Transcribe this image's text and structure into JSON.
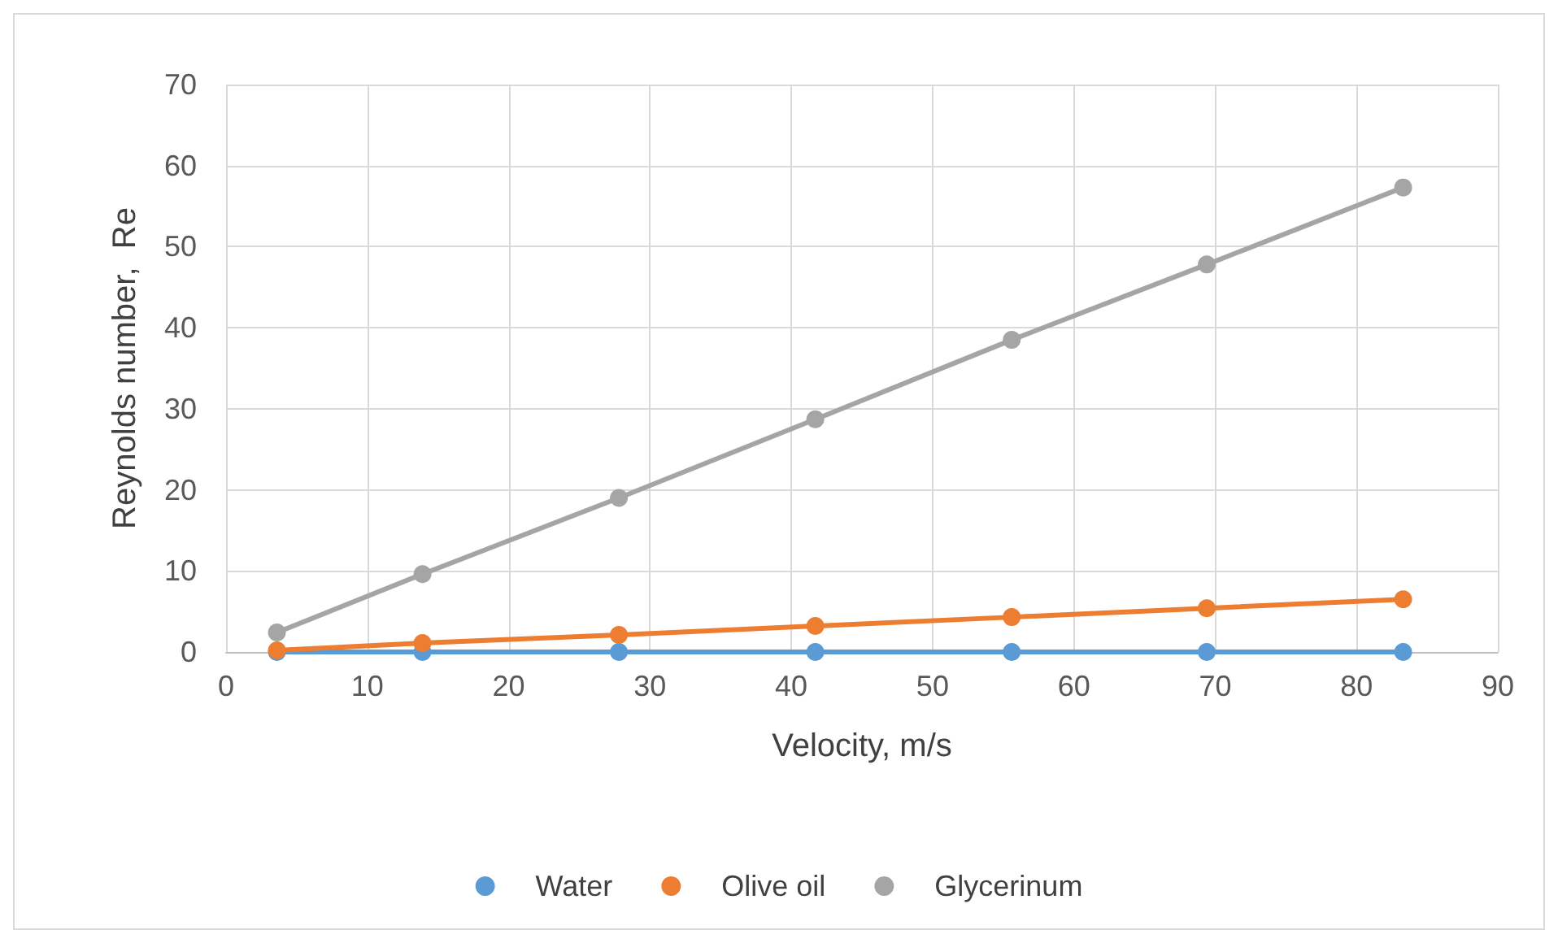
{
  "chart_data": {
    "type": "line",
    "xlabel": "Velocity, m/s",
    "ylabel": "Reynolds number,  Re",
    "x": [
      3.6,
      13.9,
      27.8,
      41.7,
      55.6,
      69.4,
      83.3
    ],
    "series": [
      {
        "name": "Water",
        "color": "#5b9bd5",
        "values": [
          0,
          0,
          0,
          0,
          0,
          0,
          0
        ]
      },
      {
        "name": "Olive oil",
        "color": "#ed7d31",
        "values": [
          0.2,
          1.1,
          2.1,
          3.2,
          4.3,
          5.4,
          6.5
        ]
      },
      {
        "name": "Glycerinum",
        "color": "#a5a5a5",
        "values": [
          2.4,
          9.6,
          19,
          28.7,
          38.5,
          47.8,
          57.3
        ]
      }
    ],
    "xlim": [
      0,
      90
    ],
    "xticks": [
      0,
      10,
      20,
      30,
      40,
      50,
      60,
      70,
      80,
      90
    ],
    "ylim": [
      0,
      70
    ],
    "yticks": [
      0,
      10,
      20,
      30,
      40,
      50,
      60,
      70
    ],
    "grid": true,
    "legend": "bottom",
    "marker": "circle",
    "line_style": "solid"
  }
}
